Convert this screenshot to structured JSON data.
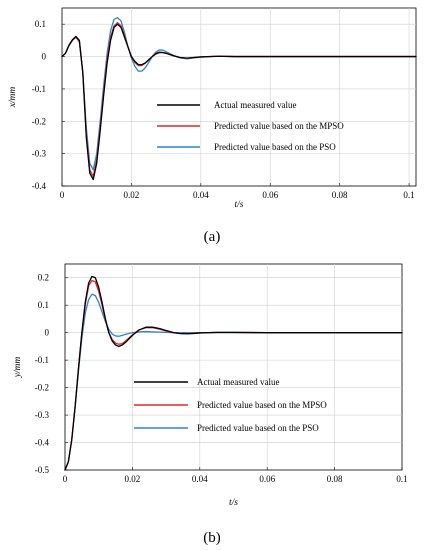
{
  "chart_data": [
    {
      "type": "line",
      "caption": "(a)",
      "xlabel": "t/s",
      "ylabel": "x/mm",
      "xlim": [
        0,
        0.102
      ],
      "ylim": [
        -0.4,
        0.15
      ],
      "x_ticks": [
        0,
        0.02,
        0.04,
        0.06,
        0.08,
        0.1
      ],
      "x_tick_labels": [
        "0",
        "0.02",
        "0.04",
        "0.06",
        "0.08",
        "0.1"
      ],
      "y_ticks": [
        0.1,
        0,
        -0.1,
        -0.2,
        -0.3,
        -0.4
      ],
      "y_tick_labels": [
        "0.1",
        "0",
        "-0.1",
        "-0.2",
        "-0.3",
        "-0.4"
      ],
      "grid": true,
      "legend_position": "center-right",
      "series": [
        {
          "name": "Actual measured value",
          "color": "#000000",
          "x": [
            0,
            0.001,
            0.002,
            0.003,
            0.004,
            0.005,
            0.006,
            0.007,
            0.008,
            0.009,
            0.01,
            0.011,
            0.012,
            0.013,
            0.014,
            0.015,
            0.016,
            0.017,
            0.018,
            0.019,
            0.02,
            0.021,
            0.022,
            0.023,
            0.024,
            0.025,
            0.026,
            0.027,
            0.028,
            0.029,
            0.03,
            0.032,
            0.034,
            0.036,
            0.038,
            0.04,
            0.045,
            0.05,
            0.06,
            0.07,
            0.08,
            0.09,
            0.1,
            0.102
          ],
          "y": [
            0,
            0.01,
            0.035,
            0.052,
            0.062,
            0.05,
            -0.05,
            -0.25,
            -0.36,
            -0.38,
            -0.33,
            -0.23,
            -0.12,
            -0.02,
            0.05,
            0.09,
            0.1,
            0.09,
            0.06,
            0.03,
            0.0,
            -0.015,
            -0.025,
            -0.025,
            -0.02,
            -0.01,
            0.0,
            0.008,
            0.012,
            0.012,
            0.01,
            0.003,
            -0.003,
            -0.005,
            -0.003,
            -0.001,
            0.001,
            0.0,
            0.0,
            0.0,
            0.0,
            0.0,
            0.0,
            0.0
          ]
        },
        {
          "name": "Predicted value based on the MPSO",
          "color": "#e0282a",
          "x": [
            0,
            0.001,
            0.002,
            0.003,
            0.004,
            0.005,
            0.006,
            0.007,
            0.008,
            0.009,
            0.01,
            0.011,
            0.012,
            0.013,
            0.014,
            0.015,
            0.016,
            0.017,
            0.018,
            0.019,
            0.02,
            0.021,
            0.022,
            0.023,
            0.024,
            0.025,
            0.026,
            0.027,
            0.028,
            0.029,
            0.03,
            0.032,
            0.034,
            0.036,
            0.038,
            0.04,
            0.045,
            0.05,
            0.06,
            0.07,
            0.08,
            0.09,
            0.1,
            0.102
          ],
          "y": [
            0,
            0.01,
            0.034,
            0.05,
            0.06,
            0.048,
            -0.05,
            -0.24,
            -0.35,
            -0.37,
            -0.32,
            -0.22,
            -0.11,
            -0.01,
            0.06,
            0.095,
            0.105,
            0.095,
            0.065,
            0.03,
            0.0,
            -0.018,
            -0.028,
            -0.028,
            -0.02,
            -0.01,
            0.0,
            0.01,
            0.014,
            0.013,
            0.01,
            0.003,
            -0.003,
            -0.005,
            -0.003,
            -0.001,
            0.001,
            0.0,
            0.0,
            0.0,
            0.0,
            0.0,
            0.0,
            0.0
          ]
        },
        {
          "name": "Predicted value based on the PSO",
          "color": "#2a86c8",
          "x": [
            0,
            0.001,
            0.002,
            0.003,
            0.004,
            0.005,
            0.006,
            0.007,
            0.008,
            0.009,
            0.01,
            0.011,
            0.012,
            0.013,
            0.014,
            0.015,
            0.016,
            0.017,
            0.018,
            0.019,
            0.02,
            0.021,
            0.022,
            0.023,
            0.024,
            0.025,
            0.026,
            0.027,
            0.028,
            0.029,
            0.03,
            0.032,
            0.034,
            0.036,
            0.038,
            0.04,
            0.045,
            0.05,
            0.06,
            0.07,
            0.08,
            0.09,
            0.1,
            0.102
          ],
          "y": [
            0,
            0.01,
            0.033,
            0.05,
            0.06,
            0.045,
            -0.05,
            -0.22,
            -0.33,
            -0.35,
            -0.3,
            -0.2,
            -0.09,
            0.01,
            0.08,
            0.115,
            0.12,
            0.11,
            0.075,
            0.03,
            -0.005,
            -0.03,
            -0.045,
            -0.045,
            -0.035,
            -0.018,
            0.0,
            0.014,
            0.02,
            0.02,
            0.015,
            0.004,
            -0.004,
            -0.007,
            -0.004,
            -0.002,
            0.001,
            0.0,
            0.0,
            0.0,
            0.0,
            0.0,
            0.0,
            0.0
          ]
        }
      ]
    },
    {
      "type": "line",
      "caption": "(b)",
      "xlabel": "t/s",
      "ylabel": "y/mm",
      "xlim": [
        0,
        0.1
      ],
      "ylim": [
        -0.5,
        0.25
      ],
      "x_ticks": [
        0,
        0.02,
        0.04,
        0.06,
        0.08,
        0.1
      ],
      "x_tick_labels": [
        "0",
        "0.02",
        "0.04",
        "0.06",
        "0.08",
        "0.1"
      ],
      "y_ticks": [
        0.2,
        0.1,
        0,
        -0.1,
        -0.2,
        -0.3,
        -0.4,
        -0.5
      ],
      "y_tick_labels": [
        "0.2",
        "0.1",
        "0",
        "-0.1",
        "-0.2",
        "-0.3",
        "-0.4",
        "-0.5"
      ],
      "grid": true,
      "legend_position": "center-left",
      "series": [
        {
          "name": "Actual measured value",
          "color": "#000000",
          "x": [
            0,
            0.001,
            0.002,
            0.003,
            0.004,
            0.005,
            0.006,
            0.007,
            0.008,
            0.009,
            0.01,
            0.011,
            0.012,
            0.013,
            0.014,
            0.015,
            0.016,
            0.017,
            0.018,
            0.02,
            0.022,
            0.024,
            0.026,
            0.028,
            0.03,
            0.032,
            0.034,
            0.036,
            0.038,
            0.04,
            0.045,
            0.05,
            0.06,
            0.07,
            0.08,
            0.09,
            0.1
          ],
          "y": [
            -0.5,
            -0.47,
            -0.39,
            -0.27,
            -0.13,
            0.0,
            0.11,
            0.18,
            0.205,
            0.2,
            0.165,
            0.11,
            0.05,
            0.0,
            -0.03,
            -0.045,
            -0.05,
            -0.045,
            -0.035,
            -0.01,
            0.01,
            0.02,
            0.02,
            0.015,
            0.008,
            0.001,
            -0.003,
            -0.004,
            -0.003,
            -0.001,
            0.001,
            0.001,
            0.0,
            0.0,
            0.0,
            0.0,
            0.0
          ]
        },
        {
          "name": "Predicted value based on the MPSO",
          "color": "#e0282a",
          "x": [
            0,
            0.001,
            0.002,
            0.003,
            0.004,
            0.005,
            0.006,
            0.007,
            0.008,
            0.009,
            0.01,
            0.011,
            0.012,
            0.013,
            0.014,
            0.015,
            0.016,
            0.017,
            0.018,
            0.02,
            0.022,
            0.024,
            0.026,
            0.028,
            0.03,
            0.032,
            0.034,
            0.036,
            0.038,
            0.04,
            0.045,
            0.05,
            0.06,
            0.07,
            0.08,
            0.09,
            0.1
          ],
          "y": [
            -0.5,
            -0.47,
            -0.39,
            -0.27,
            -0.13,
            0.0,
            0.1,
            0.17,
            0.19,
            0.185,
            0.15,
            0.1,
            0.045,
            0.0,
            -0.025,
            -0.038,
            -0.042,
            -0.04,
            -0.03,
            -0.008,
            0.01,
            0.018,
            0.018,
            0.013,
            0.006,
            0.0,
            -0.003,
            -0.004,
            -0.003,
            -0.001,
            0.001,
            0.001,
            0.0,
            0.0,
            0.0,
            0.0,
            0.0
          ]
        },
        {
          "name": "Predicted value based on the PSO",
          "color": "#2a86c8",
          "x": [
            0,
            0.001,
            0.002,
            0.003,
            0.004,
            0.005,
            0.006,
            0.007,
            0.008,
            0.009,
            0.01,
            0.011,
            0.012,
            0.013,
            0.014,
            0.015,
            0.016,
            0.017,
            0.018,
            0.02,
            0.022,
            0.024,
            0.026,
            0.028,
            0.03,
            0.032,
            0.034,
            0.036,
            0.038,
            0.04,
            0.045,
            0.05,
            0.06,
            0.07,
            0.08,
            0.09,
            0.1
          ],
          "y": [
            -0.5,
            -0.47,
            -0.39,
            -0.27,
            -0.14,
            -0.02,
            0.07,
            0.12,
            0.14,
            0.135,
            0.11,
            0.075,
            0.04,
            0.012,
            -0.005,
            -0.012,
            -0.013,
            -0.01,
            -0.006,
            0.0,
            0.003,
            0.004,
            0.003,
            0.002,
            0.001,
            0.0,
            0.0,
            0.0,
            0.0,
            0.0,
            0.0,
            0.0,
            0.0,
            0.0,
            0.0,
            0.0,
            0.0
          ]
        }
      ]
    }
  ]
}
